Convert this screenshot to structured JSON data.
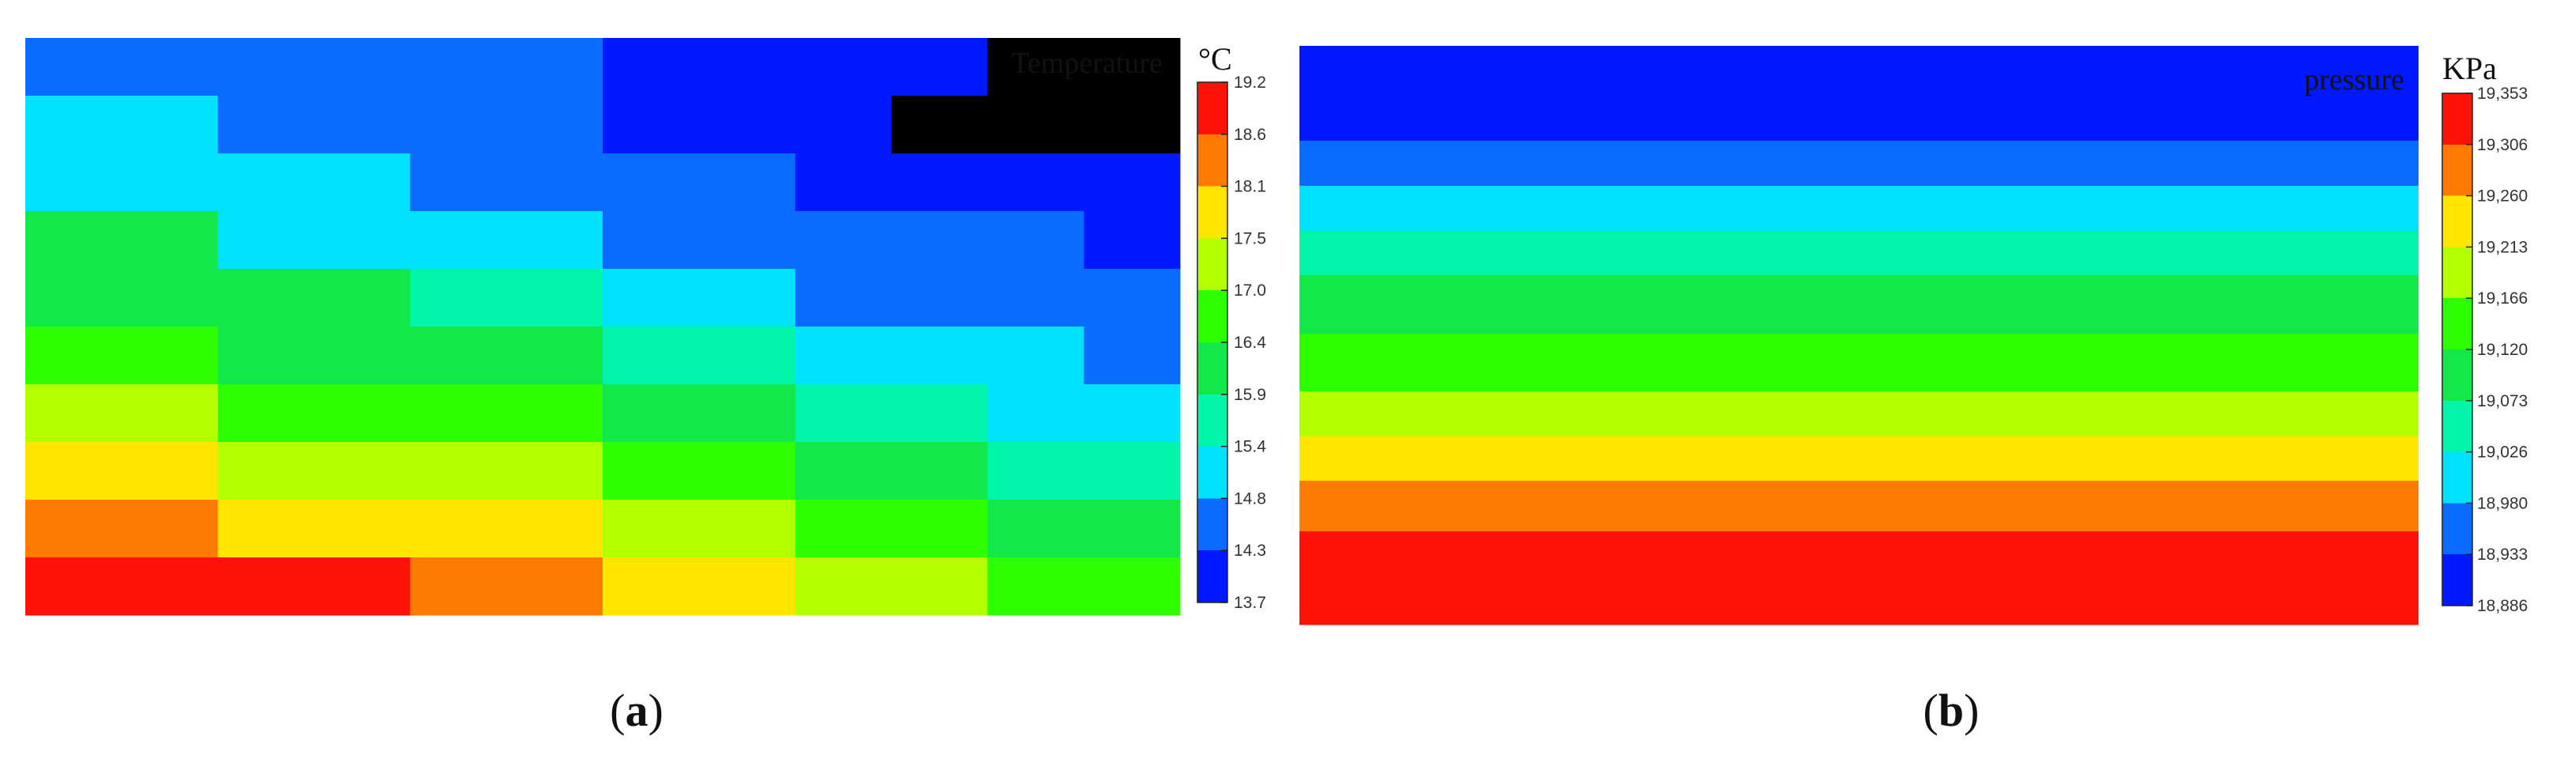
{
  "figure": {
    "panels": [
      {
        "label_open": "(",
        "label_letter": "a",
        "label_close": ")"
      },
      {
        "label_open": "(",
        "label_letter": "b",
        "label_close": ")"
      }
    ]
  },
  "chart_data": [
    {
      "type": "heatmap",
      "title": "Temperature",
      "unit": "°C",
      "colorbar": {
        "tick_labels": [
          "19.2",
          "18.6",
          "18.1",
          "17.5",
          "17.0",
          "16.4",
          "15.9",
          "15.4",
          "14.8",
          "14.3",
          "13.7"
        ],
        "colors": [
          "#ff1208",
          "#ff7a00",
          "#ffe600",
          "#b4ff00",
          "#2dff00",
          "#12e84a",
          "#00f5a8",
          "#00e2ff",
          "#0a6cff",
          "#0018ff"
        ]
      },
      "grid": {
        "columns": 12,
        "rows": 10,
        "values": [
          [
            8,
            8,
            8,
            8,
            8,
            8,
            9,
            9,
            9,
            9,
            10,
            10
          ],
          [
            7,
            7,
            8,
            8,
            8,
            8,
            9,
            9,
            9,
            10,
            10,
            10
          ],
          [
            7,
            7,
            7,
            7,
            8,
            8,
            8,
            8,
            9,
            9,
            9,
            9
          ],
          [
            5,
            5,
            7,
            7,
            7,
            7,
            8,
            8,
            8,
            8,
            8,
            9
          ],
          [
            5,
            5,
            5,
            5,
            6,
            6,
            7,
            7,
            8,
            8,
            8,
            8
          ],
          [
            4,
            4,
            5,
            5,
            5,
            5,
            6,
            6,
            7,
            7,
            7,
            8
          ],
          [
            3,
            3,
            4,
            4,
            4,
            4,
            5,
            5,
            6,
            6,
            7,
            7
          ],
          [
            2,
            2,
            3,
            3,
            3,
            3,
            4,
            4,
            5,
            5,
            6,
            6
          ],
          [
            1,
            1,
            2,
            2,
            2,
            2,
            3,
            3,
            4,
            4,
            5,
            5
          ],
          [
            0,
            0,
            0,
            0,
            1,
            1,
            2,
            2,
            3,
            3,
            4,
            4
          ]
        ]
      }
    },
    {
      "type": "heatmap",
      "title": "pressure",
      "unit": "KPa",
      "colorbar": {
        "tick_labels": [
          "19,353",
          "19,306",
          "19,260",
          "19,213",
          "19,166",
          "19,120",
          "19,073",
          "19,026",
          "18,980",
          "18,933",
          "18,886"
        ],
        "colors": [
          "#ff1208",
          "#ff7a00",
          "#ffe600",
          "#b4ff00",
          "#2dff00",
          "#12e84a",
          "#00f5a8",
          "#00e2ff",
          "#0a6cff",
          "#0018ff"
        ]
      },
      "bands": [
        9,
        8,
        7,
        6,
        5,
        4,
        3,
        2,
        1,
        0
      ]
    }
  ]
}
